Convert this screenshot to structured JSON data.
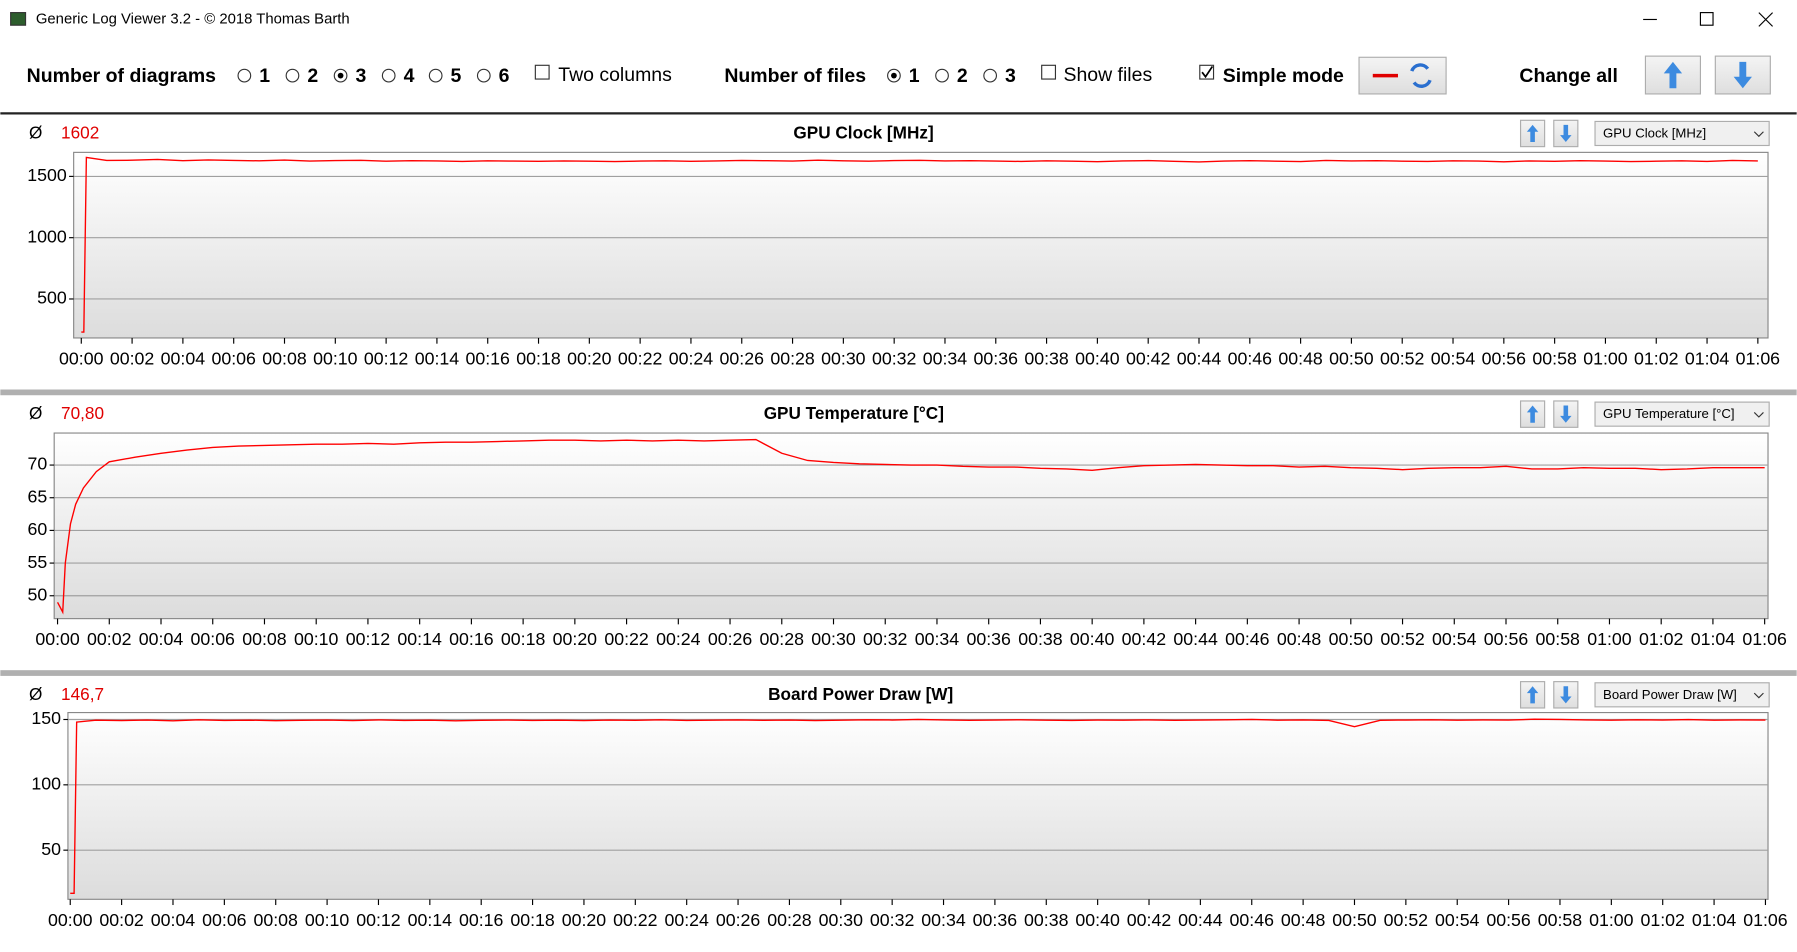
{
  "window": {
    "title": "Generic Log Viewer 3.2 - © 2018 Thomas Barth"
  },
  "toolbar": {
    "diagrams_label": "Number of diagrams",
    "diagram_options": [
      "1",
      "2",
      "3",
      "4",
      "5",
      "6"
    ],
    "two_columns": "Two columns",
    "files_label": "Number of files",
    "file_options": [
      "1",
      "2",
      "3"
    ],
    "show_files": "Show files",
    "simple_mode": "Simple mode",
    "change_all": "Change all"
  },
  "chart_data": [
    {
      "type": "line",
      "title": "GPU Clock [MHz]",
      "average_symbol": "Ø",
      "average": "1602",
      "selector": "GPU Clock [MHz]",
      "xlim": [
        -0.3,
        66.4
      ],
      "ylim": [
        182,
        1696
      ],
      "yticks": [
        500,
        1000,
        1500
      ],
      "grid": true,
      "xticks": [
        {
          "value": 0,
          "label": "00:00"
        },
        {
          "value": 2,
          "label": "00:02"
        },
        {
          "value": 4,
          "label": "00:04"
        },
        {
          "value": 6,
          "label": "00:06"
        },
        {
          "value": 8,
          "label": "00:08"
        },
        {
          "value": 10,
          "label": "00:10"
        },
        {
          "value": 12,
          "label": "00:12"
        },
        {
          "value": 14,
          "label": "00:14"
        },
        {
          "value": 16,
          "label": "00:16"
        },
        {
          "value": 18,
          "label": "00:18"
        },
        {
          "value": 20,
          "label": "00:20"
        },
        {
          "value": 22,
          "label": "00:22"
        },
        {
          "value": 24,
          "label": "00:24"
        },
        {
          "value": 26,
          "label": "00:26"
        },
        {
          "value": 28,
          "label": "00:28"
        },
        {
          "value": 30,
          "label": "00:30"
        },
        {
          "value": 32,
          "label": "00:32"
        },
        {
          "value": 34,
          "label": "00:34"
        },
        {
          "value": 36,
          "label": "00:36"
        },
        {
          "value": 38,
          "label": "00:38"
        },
        {
          "value": 40,
          "label": "00:40"
        },
        {
          "value": 42,
          "label": "00:42"
        },
        {
          "value": 44,
          "label": "00:44"
        },
        {
          "value": 46,
          "label": "00:46"
        },
        {
          "value": 48,
          "label": "00:48"
        },
        {
          "value": 50,
          "label": "00:50"
        },
        {
          "value": 52,
          "label": "00:52"
        },
        {
          "value": 54,
          "label": "00:54"
        },
        {
          "value": 56,
          "label": "00:56"
        },
        {
          "value": 58,
          "label": "00:58"
        },
        {
          "value": 60,
          "label": "01:00"
        },
        {
          "value": 62,
          "label": "01:02"
        },
        {
          "value": 64,
          "label": "01:04"
        },
        {
          "value": 66,
          "label": "01:06"
        }
      ],
      "x": [
        0,
        0.1,
        0.2,
        1,
        2,
        3,
        4,
        5,
        6,
        7,
        8,
        9,
        10,
        11,
        12,
        13,
        14,
        15,
        16,
        17,
        18,
        19,
        20,
        21,
        22,
        23,
        24,
        25,
        26,
        27,
        28,
        29,
        30,
        31,
        32,
        33,
        34,
        35,
        36,
        37,
        38,
        39,
        40,
        41,
        42,
        43,
        44,
        45,
        46,
        47,
        48,
        49,
        50,
        51,
        52,
        53,
        54,
        55,
        56,
        57,
        58,
        59,
        60,
        61,
        62,
        63,
        64,
        65,
        66
      ],
      "series": [
        {
          "color": "#ff0000",
          "values": [
            230,
            230,
            1655,
            1630,
            1632,
            1638,
            1628,
            1634,
            1630,
            1627,
            1633,
            1625,
            1629,
            1631,
            1624,
            1628,
            1626,
            1622,
            1627,
            1625,
            1623,
            1626,
            1624,
            1621,
            1625,
            1627,
            1623,
            1626,
            1630,
            1628,
            1625,
            1632,
            1627,
            1624,
            1629,
            1631,
            1626,
            1628,
            1625,
            1622,
            1627,
            1624,
            1620,
            1626,
            1629,
            1623,
            1618,
            1625,
            1628,
            1624,
            1621,
            1630,
            1626,
            1628,
            1624,
            1622,
            1627,
            1625,
            1619,
            1626,
            1623,
            1628,
            1625,
            1621,
            1624,
            1627,
            1622,
            1630,
            1626
          ]
        }
      ]
    },
    {
      "type": "line",
      "title": "GPU Temperature [°C]",
      "average_symbol": "Ø",
      "average": "70,80",
      "selector": "GPU Temperature [°C]",
      "xlim": [
        -0.13,
        66.13
      ],
      "ylim": [
        46.5,
        74.9
      ],
      "yticks": [
        50,
        55,
        60,
        65,
        70
      ],
      "grid": true,
      "xticks": [
        {
          "value": 0,
          "label": "00:00"
        },
        {
          "value": 2,
          "label": "00:02"
        },
        {
          "value": 4,
          "label": "00:04"
        },
        {
          "value": 6,
          "label": "00:06"
        },
        {
          "value": 8,
          "label": "00:08"
        },
        {
          "value": 10,
          "label": "00:10"
        },
        {
          "value": 12,
          "label": "00:12"
        },
        {
          "value": 14,
          "label": "00:14"
        },
        {
          "value": 16,
          "label": "00:16"
        },
        {
          "value": 18,
          "label": "00:18"
        },
        {
          "value": 20,
          "label": "00:20"
        },
        {
          "value": 22,
          "label": "00:22"
        },
        {
          "value": 24,
          "label": "00:24"
        },
        {
          "value": 26,
          "label": "00:26"
        },
        {
          "value": 28,
          "label": "00:28"
        },
        {
          "value": 30,
          "label": "00:30"
        },
        {
          "value": 32,
          "label": "00:32"
        },
        {
          "value": 34,
          "label": "00:34"
        },
        {
          "value": 36,
          "label": "00:36"
        },
        {
          "value": 38,
          "label": "00:38"
        },
        {
          "value": 40,
          "label": "00:40"
        },
        {
          "value": 42,
          "label": "00:42"
        },
        {
          "value": 44,
          "label": "00:44"
        },
        {
          "value": 46,
          "label": "00:46"
        },
        {
          "value": 48,
          "label": "00:48"
        },
        {
          "value": 50,
          "label": "00:50"
        },
        {
          "value": 52,
          "label": "00:52"
        },
        {
          "value": 54,
          "label": "00:54"
        },
        {
          "value": 56,
          "label": "00:56"
        },
        {
          "value": 58,
          "label": "00:58"
        },
        {
          "value": 60,
          "label": "01:00"
        },
        {
          "value": 62,
          "label": "01:02"
        },
        {
          "value": 64,
          "label": "01:04"
        },
        {
          "value": 66,
          "label": "01:06"
        }
      ],
      "x": [
        0,
        0.2,
        0.3,
        0.5,
        0.7,
        1,
        1.5,
        2,
        3,
        4,
        5,
        6,
        7,
        8,
        9,
        10,
        11,
        12,
        13,
        14,
        15,
        16,
        17,
        18,
        19,
        20,
        21,
        22,
        23,
        24,
        25,
        26,
        27,
        28,
        29,
        30,
        31,
        32,
        33,
        34,
        35,
        36,
        37,
        38,
        39,
        40,
        41,
        42,
        43,
        44,
        45,
        46,
        47,
        48,
        49,
        50,
        51,
        52,
        53,
        54,
        55,
        56,
        57,
        58,
        59,
        60,
        61,
        62,
        63,
        64,
        65,
        66
      ],
      "series": [
        {
          "color": "#ff0000",
          "values": [
            49,
            47.5,
            55,
            61,
            64,
            66.5,
            69,
            70.5,
            71.2,
            71.8,
            72.3,
            72.7,
            72.9,
            73.0,
            73.1,
            73.2,
            73.2,
            73.3,
            73.2,
            73.4,
            73.5,
            73.5,
            73.6,
            73.7,
            73.8,
            73.8,
            73.7,
            73.8,
            73.7,
            73.8,
            73.7,
            73.8,
            73.9,
            71.8,
            70.7,
            70.4,
            70.2,
            70.1,
            70.0,
            70.0,
            69.8,
            69.7,
            69.7,
            69.5,
            69.4,
            69.2,
            69.6,
            69.9,
            70.0,
            70.1,
            70.0,
            69.9,
            69.9,
            69.7,
            69.8,
            69.6,
            69.5,
            69.3,
            69.5,
            69.6,
            69.6,
            69.8,
            69.4,
            69.4,
            69.6,
            69.5,
            69.5,
            69.3,
            69.4,
            69.6,
            69.6,
            69.6
          ]
        }
      ]
    },
    {
      "type": "line",
      "title": "Board Power Draw [W]",
      "average_symbol": "Ø",
      "average": "146,7",
      "selector": "Board Power Draw [W]",
      "xlim": [
        -0.09,
        66.1
      ],
      "ylim": [
        12.4,
        155.3
      ],
      "yticks": [
        50,
        100,
        150
      ],
      "grid": true,
      "xticks": [
        {
          "value": 0,
          "label": "00:00"
        },
        {
          "value": 2,
          "label": "00:02"
        },
        {
          "value": 4,
          "label": "00:04"
        },
        {
          "value": 6,
          "label": "00:06"
        },
        {
          "value": 8,
          "label": "00:08"
        },
        {
          "value": 10,
          "label": "00:10"
        },
        {
          "value": 12,
          "label": "00:12"
        },
        {
          "value": 14,
          "label": "00:14"
        },
        {
          "value": 16,
          "label": "00:16"
        },
        {
          "value": 18,
          "label": "00:18"
        },
        {
          "value": 20,
          "label": "00:20"
        },
        {
          "value": 22,
          "label": "00:22"
        },
        {
          "value": 24,
          "label": "00:24"
        },
        {
          "value": 26,
          "label": "00:26"
        },
        {
          "value": 28,
          "label": "00:28"
        },
        {
          "value": 30,
          "label": "00:30"
        },
        {
          "value": 32,
          "label": "00:32"
        },
        {
          "value": 34,
          "label": "00:34"
        },
        {
          "value": 36,
          "label": "00:36"
        },
        {
          "value": 38,
          "label": "00:38"
        },
        {
          "value": 40,
          "label": "00:40"
        },
        {
          "value": 42,
          "label": "00:42"
        },
        {
          "value": 44,
          "label": "00:44"
        },
        {
          "value": 46,
          "label": "00:46"
        },
        {
          "value": 48,
          "label": "00:48"
        },
        {
          "value": 50,
          "label": "00:50"
        },
        {
          "value": 52,
          "label": "00:52"
        },
        {
          "value": 54,
          "label": "00:54"
        },
        {
          "value": 56,
          "label": "00:56"
        },
        {
          "value": 58,
          "label": "00:58"
        },
        {
          "value": 60,
          "label": "01:00"
        },
        {
          "value": 62,
          "label": "01:02"
        },
        {
          "value": 64,
          "label": "01:04"
        },
        {
          "value": 66,
          "label": "01:06"
        }
      ],
      "x": [
        0,
        0.15,
        0.25,
        1,
        2,
        3,
        4,
        5,
        6,
        7,
        8,
        9,
        10,
        11,
        12,
        13,
        14,
        15,
        16,
        17,
        18,
        19,
        20,
        21,
        22,
        23,
        24,
        25,
        26,
        27,
        28,
        29,
        30,
        31,
        32,
        33,
        34,
        35,
        36,
        37,
        38,
        39,
        40,
        41,
        42,
        43,
        44,
        45,
        46,
        47,
        48,
        49,
        50,
        51,
        52,
        53,
        54,
        55,
        56,
        57,
        58,
        59,
        60,
        61,
        62,
        63,
        64,
        65,
        66
      ],
      "series": [
        {
          "color": "#ff0000",
          "values": [
            17,
            17,
            148,
            149.5,
            149.2,
            149.6,
            149.0,
            149.8,
            149.3,
            149.5,
            149.1,
            149.4,
            149.6,
            149.2,
            149.7,
            149.3,
            149.5,
            149.0,
            149.4,
            149.6,
            149.3,
            149.5,
            149.2,
            149.6,
            149.4,
            149.8,
            149.3,
            149.5,
            149.7,
            149.4,
            149.6,
            149.2,
            149.5,
            149.8,
            149.6,
            150.0,
            149.7,
            149.4,
            149.6,
            149.8,
            149.5,
            149.3,
            149.6,
            149.5,
            149.7,
            149.4,
            149.6,
            149.8,
            150.0,
            149.5,
            149.7,
            149.3,
            144.5,
            149.4,
            149.6,
            149.8,
            149.5,
            149.7,
            149.6,
            150.2,
            150.0,
            149.7,
            149.5,
            149.8,
            149.6,
            149.9,
            149.5,
            149.7,
            149.6
          ]
        }
      ]
    }
  ]
}
